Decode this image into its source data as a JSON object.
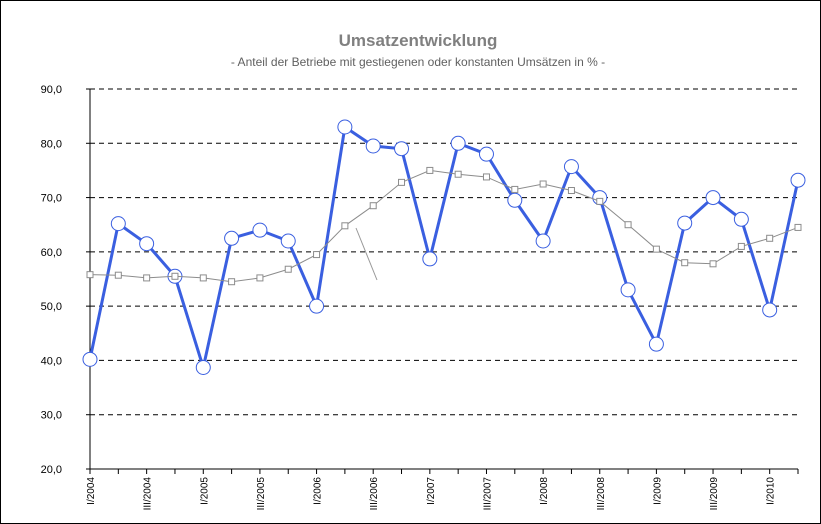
{
  "chart_data": {
    "type": "line",
    "title": "Umsatzentwicklung",
    "subtitle": "- Anteil der Betriebe mit gestiegenen oder konstanten Umsätzen in % -",
    "categories": [
      "I/2004",
      null,
      "III/2004",
      null,
      "I/2005",
      null,
      "III/2005",
      null,
      "I/2006",
      null,
      "III/2006",
      null,
      "I/2007",
      null,
      "III/2007",
      null,
      "I/2008",
      null,
      "III/2008",
      null,
      "I/2009",
      null,
      "III/2009",
      null,
      "I/2010",
      null
    ],
    "series": [
      {
        "color": "#3a5fe0",
        "values": [
          40.2,
          65.2,
          61.5,
          55.5,
          38.7,
          62.5,
          64.0,
          62.0,
          50.0,
          83.0,
          79.5,
          79.0,
          58.7,
          80.0,
          78.0,
          69.5,
          62.0,
          75.7,
          70.0,
          53.0,
          43.0,
          65.3,
          70.0,
          66.0,
          49.3,
          73.2
        ]
      },
      {
        "color": "#8c8c8c",
        "values": [
          55.8,
          55.7,
          55.2,
          55.5,
          55.2,
          54.5,
          55.2,
          56.8,
          59.5,
          64.8,
          68.5,
          72.8,
          75.0,
          74.3,
          73.8,
          71.5,
          72.5,
          71.3,
          69.3,
          65.0,
          60.5,
          58.0,
          57.8,
          61.0,
          62.5,
          64.5
        ]
      }
    ],
    "ylim": [
      20,
      90
    ],
    "yticks": [
      {
        "value": 20,
        "label": "20,0"
      },
      {
        "value": 30,
        "label": "30,0"
      },
      {
        "value": 40,
        "label": "40,0"
      },
      {
        "value": 50,
        "label": "50,0"
      },
      {
        "value": 60,
        "label": "60,0"
      },
      {
        "value": 70,
        "label": "70,0"
      },
      {
        "value": 80,
        "label": "80,0"
      },
      {
        "value": 90,
        "label": "90,0"
      }
    ],
    "grid": true
  }
}
